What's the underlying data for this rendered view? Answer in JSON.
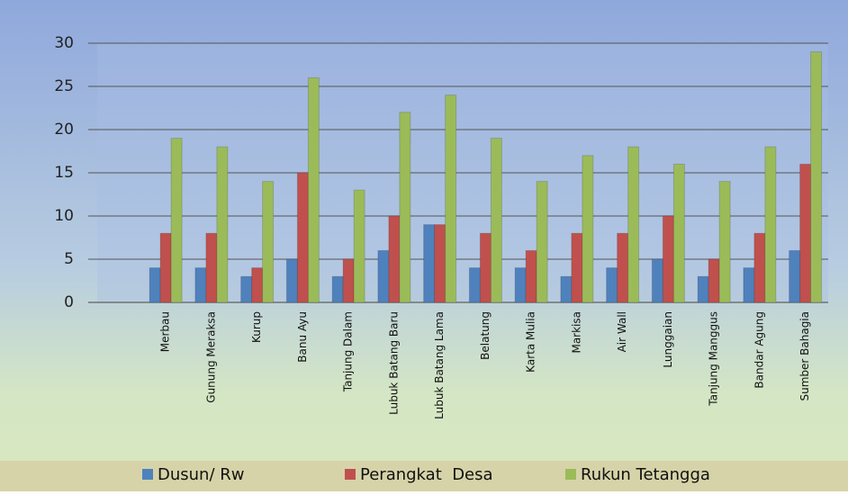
{
  "chart_data": {
    "type": "bar",
    "categories": [
      null,
      "Merbau",
      "Gunung Meraksa",
      "Kurup",
      "Banu Ayu",
      "Tanjung Dalam",
      "Lubuk Batang Baru",
      "Lubuk Batang Lama",
      "Belatung",
      "Karta Mulia",
      "Markisa",
      "Air Wall",
      "Lunggaian",
      "Tanjung Manggus",
      "Bandar Agung",
      "Sumber Bahagia"
    ],
    "series": [
      {
        "name": "Dusun/ Rw",
        "color": "#4f81bd",
        "values": [
          null,
          4,
          4,
          3,
          5,
          3,
          6,
          9,
          4,
          4,
          3,
          4,
          5,
          3,
          4,
          6
        ]
      },
      {
        "name": "Perangkat  Desa",
        "color": "#c0504d",
        "values": [
          null,
          8,
          8,
          4,
          15,
          5,
          10,
          9,
          8,
          6,
          8,
          8,
          10,
          5,
          8,
          16
        ]
      },
      {
        "name": "Rukun Tetangga",
        "color": "#9bbb59",
        "values": [
          null,
          19,
          18,
          14,
          26,
          13,
          22,
          24,
          19,
          14,
          17,
          18,
          16,
          14,
          18,
          29
        ]
      }
    ],
    "ylim": [
      0,
      30
    ],
    "yticks": [
      0,
      5,
      10,
      15,
      20,
      25,
      30
    ],
    "grid": true,
    "legend": "bottom"
  }
}
